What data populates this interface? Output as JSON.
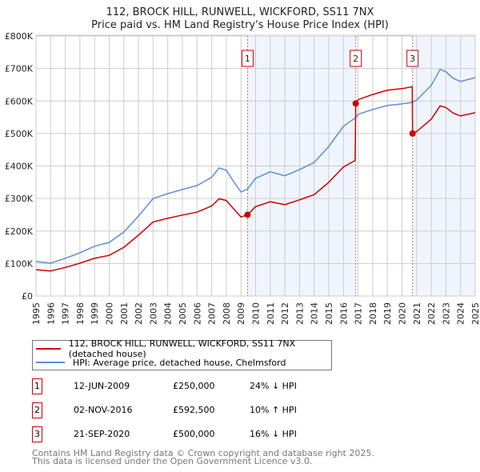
{
  "chart_data": {
    "type": "line",
    "title": "112, BROCK HILL, RUNWELL, WICKFORD, SS11 7NX",
    "subtitle": "Price paid vs. HM Land Registry's House Price Index (HPI)",
    "xlim": [
      1995,
      2025
    ],
    "ylim": [
      0,
      800000
    ],
    "grid": true,
    "x_ticks": [
      "1995",
      "1996",
      "1997",
      "1998",
      "1999",
      "2000",
      "2001",
      "2002",
      "2003",
      "2004",
      "2005",
      "2006",
      "2007",
      "2008",
      "2009",
      "2010",
      "2011",
      "2012",
      "2013",
      "2014",
      "2015",
      "2016",
      "2017",
      "2018",
      "2019",
      "2020",
      "2021",
      "2022",
      "2023",
      "2024",
      "2025"
    ],
    "y_ticks": [
      {
        "v": 0,
        "label": "£0"
      },
      {
        "v": 100000,
        "label": "£100K"
      },
      {
        "v": 200000,
        "label": "£200K"
      },
      {
        "v": 300000,
        "label": "£300K"
      },
      {
        "v": 400000,
        "label": "£400K"
      },
      {
        "v": 500000,
        "label": "£500K"
      },
      {
        "v": 600000,
        "label": "£600K"
      },
      {
        "v": 700000,
        "label": "£700K"
      },
      {
        "v": 800000,
        "label": "£800K"
      }
    ],
    "series": [
      {
        "name": "112, BROCK HILL, RUNWELL, WICKFORD, SS11 7NX (detached house)",
        "color": "#cc0000",
        "x": [
          1995,
          1996,
          1997,
          1998,
          1999,
          2000,
          2001,
          2002,
          2003,
          2004,
          2005,
          2006,
          2007,
          2007.5,
          2008,
          2008.5,
          2009,
          2009.45,
          2010,
          2011,
          2012,
          2013,
          2014,
          2015,
          2016,
          2016.8,
          2016.84,
          2017,
          2018,
          2019,
          2020,
          2020.7,
          2020.72,
          2021,
          2022,
          2022.6,
          2023,
          2023.5,
          2024,
          2025
        ],
        "y": [
          81000,
          77000,
          88000,
          101000,
          116000,
          125000,
          150000,
          187000,
          228000,
          239000,
          249000,
          258000,
          277000,
          299000,
          294000,
          268000,
          243000,
          250000,
          275000,
          290000,
          281000,
          296000,
          312000,
          350000,
          397000,
          417000,
          592500,
          604000,
          620000,
          633000,
          638000,
          644000,
          500000,
          506000,
          544000,
          585000,
          580000,
          563000,
          554000,
          564000
        ]
      },
      {
        "name": "HPI: Average price, detached house, Chelmsford",
        "color": "#5b8fd4",
        "x": [
          1995,
          1996,
          1997,
          1998,
          1999,
          2000,
          2001,
          2002,
          2003,
          2004,
          2005,
          2006,
          2007,
          2007.5,
          2008,
          2008.5,
          2009,
          2009.45,
          2010,
          2011,
          2012,
          2013,
          2014,
          2015,
          2016,
          2016.84,
          2017,
          2018,
          2019,
          2020,
          2020.72,
          2021,
          2022,
          2022.6,
          2023,
          2023.5,
          2024,
          2025
        ],
        "y": [
          106000,
          101000,
          116000,
          133000,
          153000,
          165000,
          197000,
          246000,
          300000,
          315000,
          328000,
          340000,
          365000,
          394000,
          387000,
          352000,
          320000,
          329000,
          362000,
          382000,
          370000,
          389000,
          411000,
          460000,
          522000,
          549000,
          559000,
          574000,
          586000,
          591000,
          596000,
          603000,
          648000,
          697000,
          690000,
          670000,
          660000,
          672000
        ]
      }
    ],
    "sales": [
      {
        "id": "1",
        "x": 2009.45,
        "y": 250000,
        "date": "12-JUN-2009",
        "price": "£250,000",
        "hpi": "24% ↓ HPI"
      },
      {
        "id": "2",
        "x": 2016.84,
        "y": 592500,
        "date": "02-NOV-2016",
        "price": "£592,500",
        "hpi": "10% ↑ HPI"
      },
      {
        "id": "3",
        "x": 2020.72,
        "y": 500000,
        "date": "21-SEP-2020",
        "price": "£500,000",
        "hpi": "16% ↓ HPI"
      }
    ],
    "shaded_ranges": [
      [
        2009.45,
        2016.84
      ],
      [
        2020.72,
        2025
      ]
    ],
    "legend_placement": "below"
  },
  "footer": {
    "line1": "Contains HM Land Registry data © Crown copyright and database right 2025.",
    "line2": "This data is licensed under the Open Government Licence v3.0."
  }
}
